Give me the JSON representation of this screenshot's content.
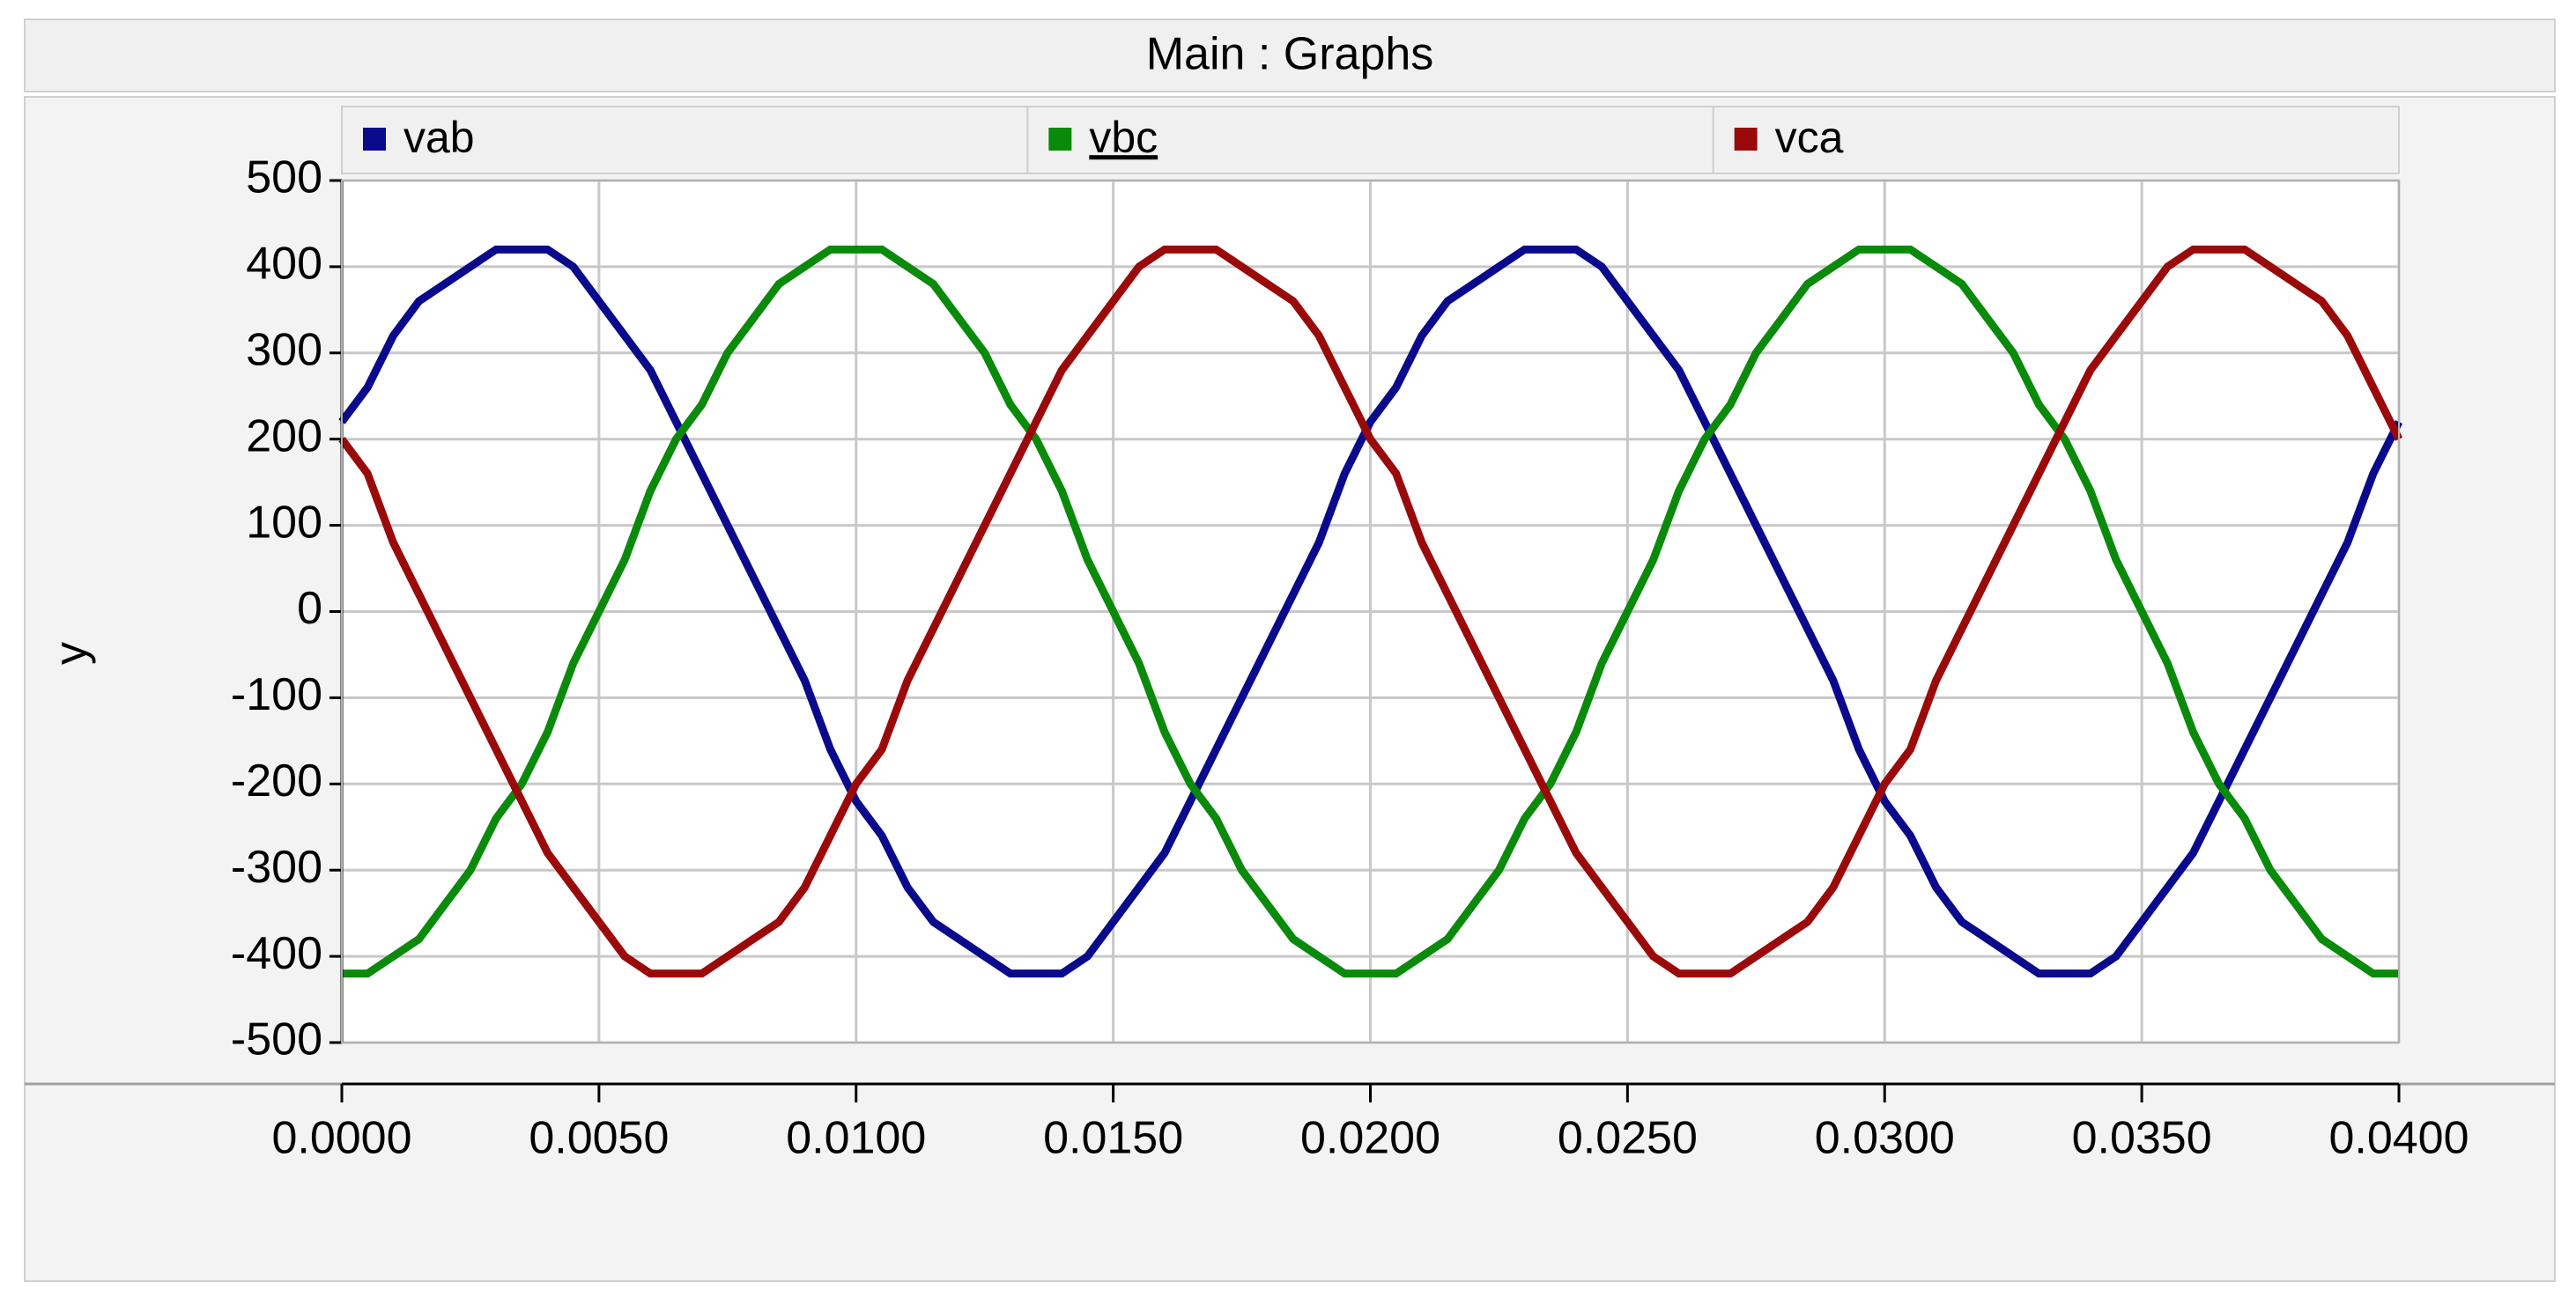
{
  "chart_data": {
    "type": "line",
    "title": "Main : Graphs",
    "ylabel": "y",
    "x": [
      0,
      0.0005,
      0.001,
      0.0015,
      0.002,
      0.0025,
      0.003,
      0.0035,
      0.004,
      0.0045,
      0.005,
      0.0055,
      0.006,
      0.0065,
      0.007,
      0.0075,
      0.008,
      0.0085,
      0.009,
      0.0095,
      0.01,
      0.0105,
      0.011,
      0.0115,
      0.012,
      0.0125,
      0.013,
      0.0135,
      0.014,
      0.0145,
      0.015,
      0.0155,
      0.016,
      0.0165,
      0.017,
      0.0175,
      0.018,
      0.0185,
      0.019,
      0.0195,
      0.02,
      0.0205,
      0.021,
      0.0215,
      0.022,
      0.0225,
      0.023,
      0.0235,
      0.024,
      0.0245,
      0.025,
      0.0255,
      0.026,
      0.0265,
      0.027,
      0.0275,
      0.028,
      0.0285,
      0.029,
      0.0295,
      0.03,
      0.0305,
      0.031,
      0.0315,
      0.032,
      0.0325,
      0.033,
      0.0335,
      0.034,
      0.0345,
      0.035,
      0.0355,
      0.036,
      0.0365,
      0.037,
      0.0375,
      0.038,
      0.0385,
      0.039,
      0.0395,
      0.04
    ],
    "series": [
      {
        "name": "vab",
        "color": "#0a0a8c",
        "values": [
          220,
          260,
          320,
          360,
          380,
          400,
          420,
          420,
          420,
          400,
          360,
          320,
          280,
          220,
          160,
          100,
          40,
          -20,
          -80,
          -160,
          -220,
          -260,
          -320,
          -360,
          -380,
          -400,
          -420,
          -420,
          -420,
          -400,
          -360,
          -320,
          -280,
          -220,
          -160,
          -100,
          -40,
          20,
          80,
          160,
          220,
          260,
          320,
          360,
          380,
          400,
          420,
          420,
          420,
          400,
          360,
          320,
          280,
          220,
          160,
          100,
          40,
          -20,
          -80,
          -160,
          -220,
          -260,
          -320,
          -360,
          -380,
          -400,
          -420,
          -420,
          -420,
          -400,
          -360,
          -320,
          -280,
          -220,
          -160,
          -100,
          -40,
          20,
          80,
          160,
          220
        ]
      },
      {
        "name": "vbc",
        "color": "#0a8a0a",
        "values": [
          -420,
          -420,
          -400,
          -380,
          -340,
          -300,
          -240,
          -200,
          -140,
          -60,
          0,
          60,
          140,
          200,
          240,
          300,
          340,
          380,
          400,
          420,
          420,
          420,
          400,
          380,
          340,
          300,
          240,
          200,
          140,
          60,
          0,
          -60,
          -140,
          -200,
          -240,
          -300,
          -340,
          -380,
          -400,
          -420,
          -420,
          -420,
          -400,
          -380,
          -340,
          -300,
          -240,
          -200,
          -140,
          -60,
          0,
          60,
          140,
          200,
          240,
          300,
          340,
          380,
          400,
          420,
          420,
          420,
          400,
          380,
          340,
          300,
          240,
          200,
          140,
          60,
          0,
          -60,
          -140,
          -200,
          -240,
          -300,
          -340,
          -380,
          -400,
          -420,
          -420
        ]
      },
      {
        "name": "vca",
        "color": "#9b0a0a",
        "values": [
          200,
          160,
          80,
          20,
          -40,
          -100,
          -160,
          -220,
          -280,
          -320,
          -360,
          -400,
          -420,
          -420,
          -420,
          -400,
          -380,
          -360,
          -320,
          -260,
          -200,
          -160,
          -80,
          -20,
          40,
          100,
          160,
          220,
          280,
          320,
          360,
          400,
          420,
          420,
          420,
          400,
          380,
          360,
          320,
          260,
          200,
          160,
          80,
          20,
          -40,
          -100,
          -160,
          -220,
          -280,
          -320,
          -360,
          -400,
          -420,
          -420,
          -420,
          -400,
          -380,
          -360,
          -320,
          -260,
          -200,
          -160,
          -80,
          -20,
          40,
          100,
          160,
          220,
          280,
          320,
          360,
          400,
          420,
          420,
          420,
          400,
          380,
          360,
          320,
          260,
          200
        ]
      }
    ],
    "xlim": [
      0,
      0.04
    ],
    "ylim": [
      -500,
      500
    ],
    "xticks": [
      {
        "value": 0,
        "label": "0.0000"
      },
      {
        "value": 0.005,
        "label": "0.0050"
      },
      {
        "value": 0.01,
        "label": "0.0100"
      },
      {
        "value": 0.015,
        "label": "0.0150"
      },
      {
        "value": 0.02,
        "label": "0.0200"
      },
      {
        "value": 0.025,
        "label": "0.0250"
      },
      {
        "value": 0.03,
        "label": "0.0300"
      },
      {
        "value": 0.035,
        "label": "0.0350"
      },
      {
        "value": 0.04,
        "label": "0.0400"
      }
    ],
    "yticks": [
      500,
      400,
      300,
      200,
      100,
      0,
      -100,
      -200,
      -300,
      -400,
      -500
    ],
    "grid": true
  }
}
